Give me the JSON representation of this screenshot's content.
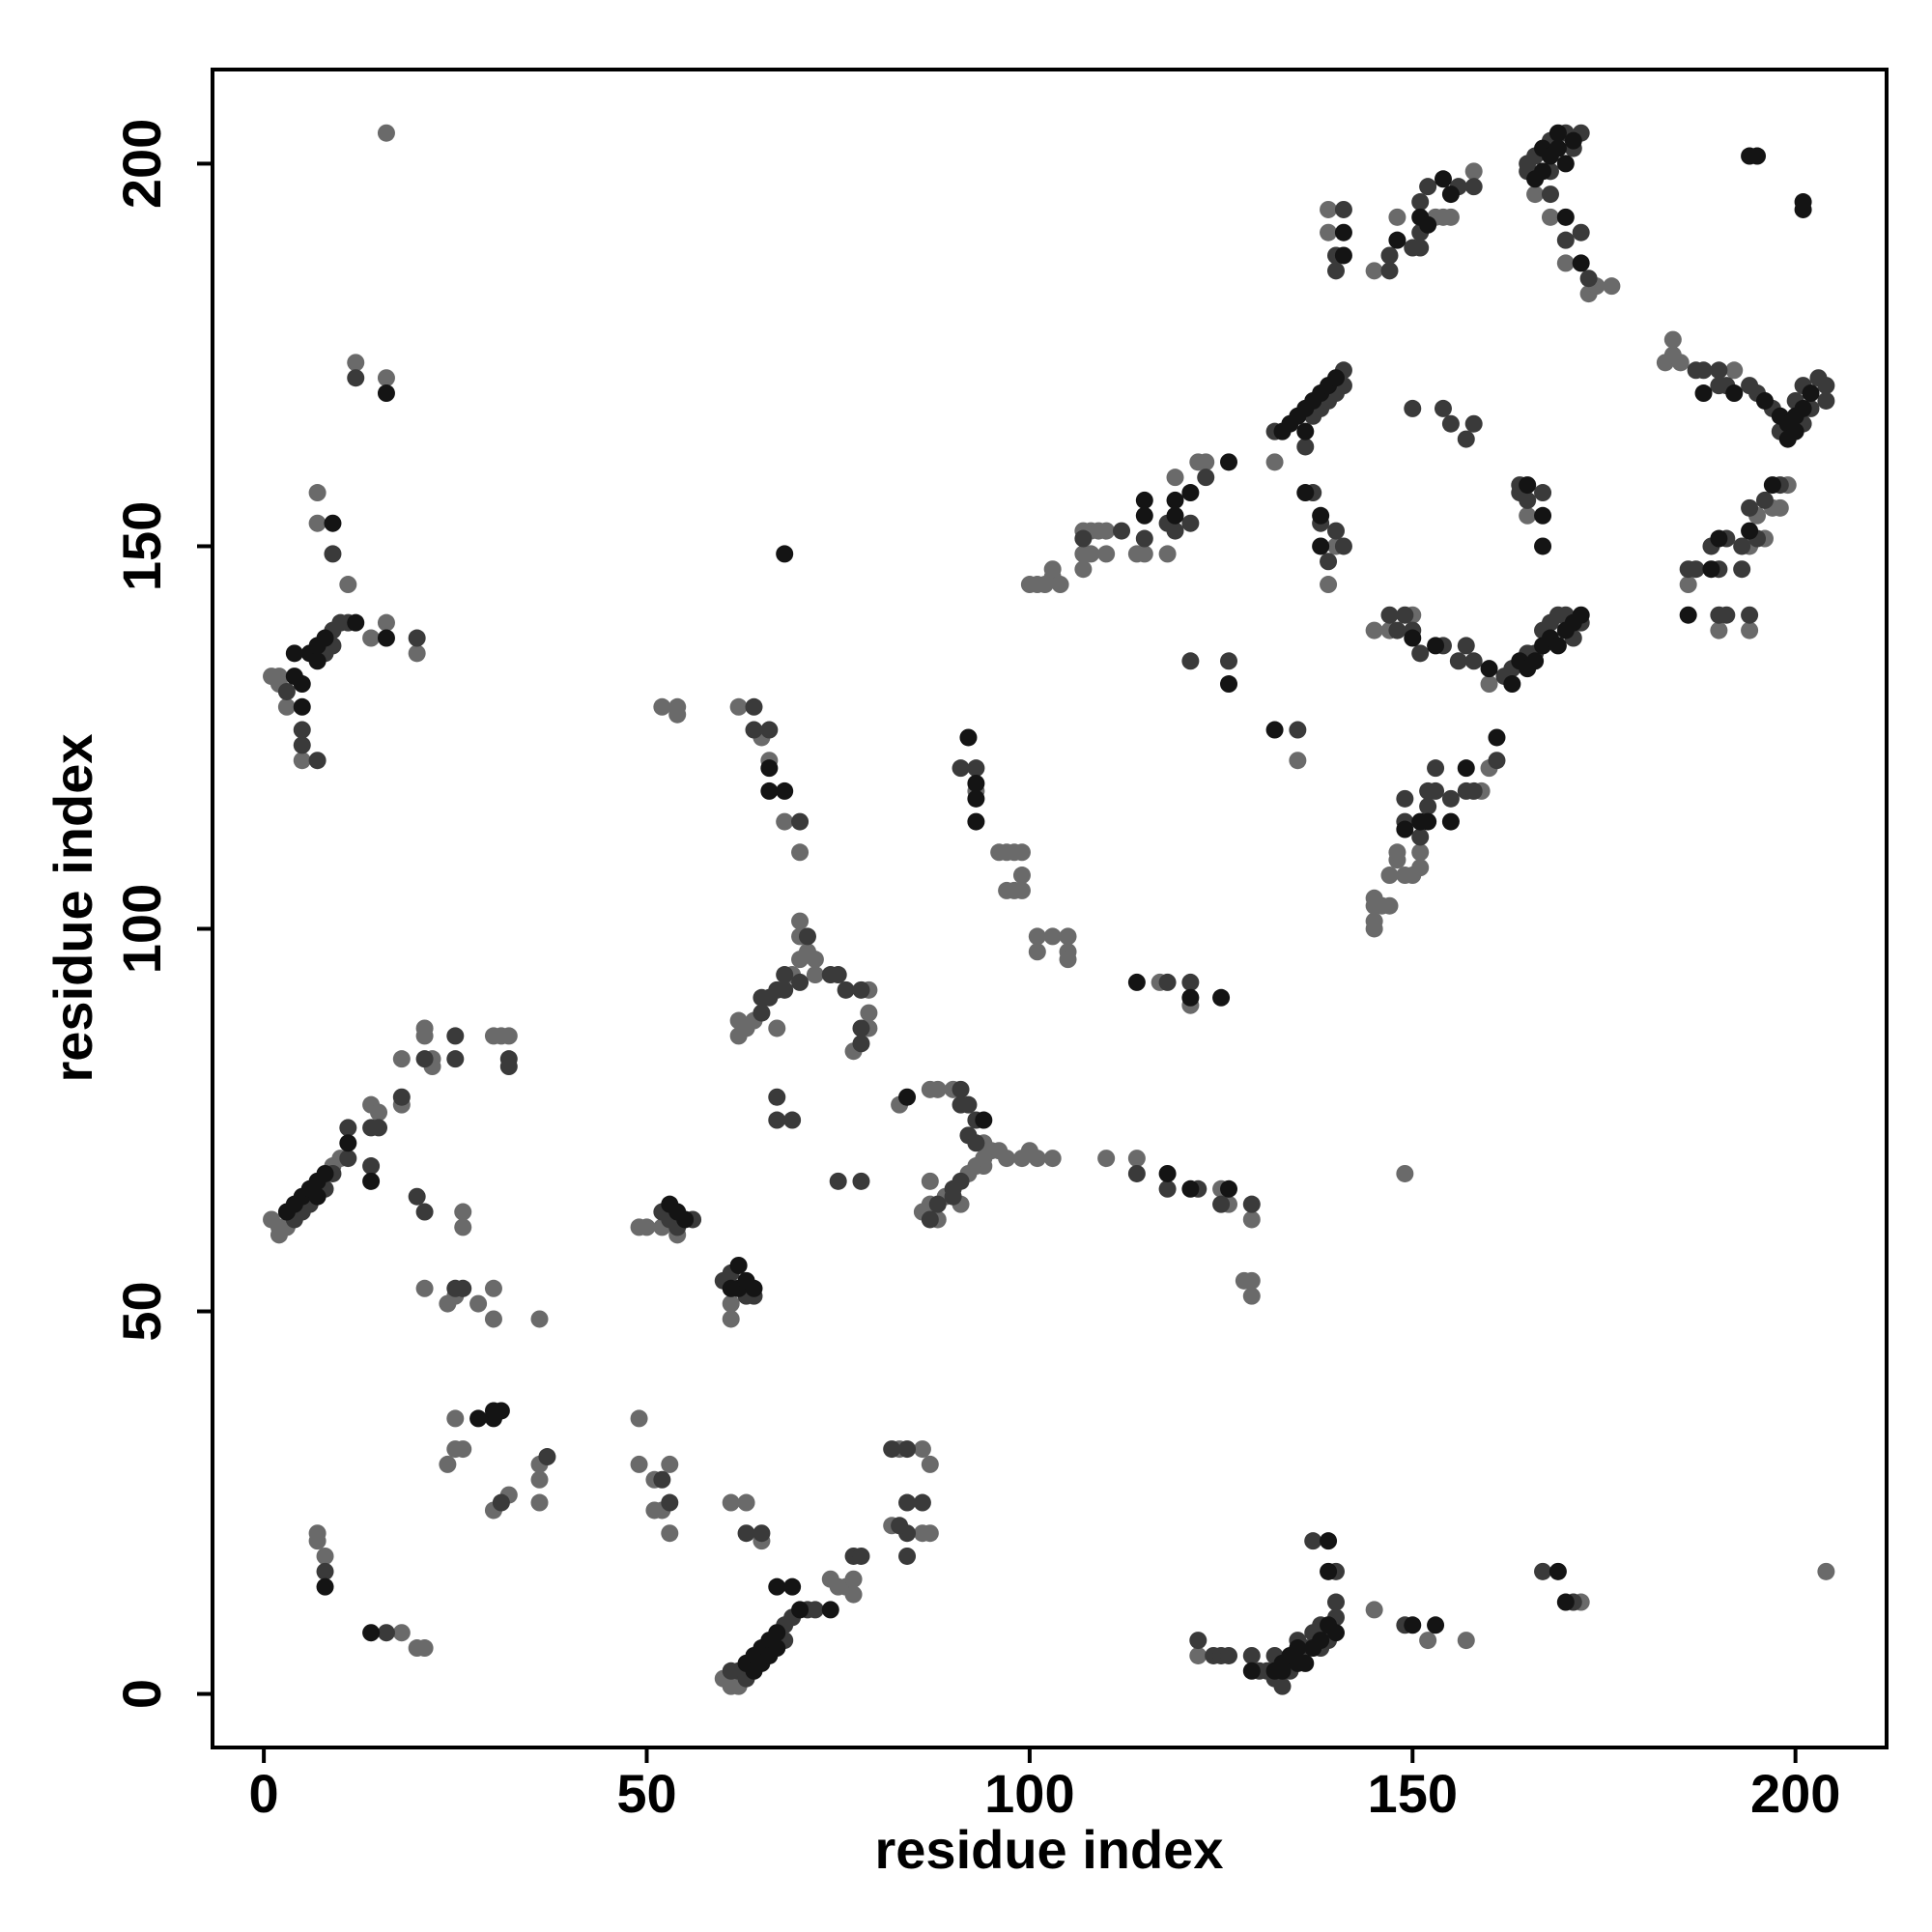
{
  "chart_data": {
    "type": "scatter",
    "x_label": "residue index",
    "y_label": "residue index",
    "xlim": [
      -6.7,
      211.9
    ],
    "ylim": [
      -7,
      212.3
    ],
    "xticks": [
      0,
      50,
      100,
      150,
      200
    ],
    "yticks": [
      0,
      50,
      100,
      150,
      200
    ],
    "grid": false,
    "series": [
      {
        "color": "#6a6a6a",
        "x": [
          7,
          7,
          8,
          18,
          20,
          21,
          24,
          25,
          25,
          26,
          30,
          32,
          36,
          36,
          36,
          49,
          49,
          51,
          51,
          52,
          53,
          53,
          61,
          63,
          65,
          60,
          61,
          62,
          74,
          75,
          76,
          77,
          77,
          83,
          86,
          87,
          82,
          87,
          86,
          1,
          2,
          2,
          3,
          9,
          10,
          14,
          15,
          18,
          18,
          22,
          21,
          21,
          22,
          30,
          31,
          32,
          26,
          26,
          21,
          25,
          24,
          28,
          30,
          30,
          36,
          1,
          2,
          2,
          3,
          5,
          7,
          7,
          11,
          14,
          16,
          20,
          12,
          16,
          16,
          49,
          50,
          52,
          54,
          52,
          54,
          54,
          61,
          61,
          62,
          65,
          66,
          68,
          70,
          93,
          96,
          97,
          98,
          99,
          97,
          98,
          99,
          99,
          101,
          101,
          103,
          105,
          105,
          105,
          62,
          62,
          63,
          64,
          67,
          69,
          70,
          70,
          70,
          71,
          72,
          72,
          79,
          79,
          77,
          79,
          83,
          87,
          88,
          90,
          94,
          95,
          94,
          93,
          92,
          91,
          87,
          86,
          88,
          87,
          89,
          96,
          97,
          99,
          100,
          101,
          103,
          94,
          110,
          114,
          125,
          126,
          129,
          128,
          129,
          129,
          117,
          121,
          149,
          100,
          101,
          102,
          103,
          103,
          104,
          107,
          107,
          107,
          108,
          109,
          108,
          110,
          110,
          114,
          115,
          118,
          119,
          122,
          123,
          132,
          135,
          139,
          140,
          139,
          139,
          145,
          148,
          153,
          154,
          155,
          158,
          145,
          147,
          150,
          160,
          145,
          145,
          145,
          145,
          146,
          147,
          147,
          148,
          148,
          149,
          150,
          151,
          151,
          159,
          160,
          165,
          166,
          168,
          170,
          173,
          174,
          176,
          183,
          184,
          184,
          185,
          192,
          186,
          190,
          194,
          194,
          195,
          197,
          198,
          199,
          196,
          122,
          145,
          152,
          157,
          172,
          204
        ],
        "y": [
          21,
          20,
          18,
          8,
          6,
          6,
          30,
          32,
          36,
          32,
          24,
          26,
          30,
          28,
          25,
          36,
          30,
          28,
          24,
          24,
          30,
          21,
          25,
          25,
          20,
          2,
          1,
          1,
          15,
          14,
          14,
          15,
          13,
          32,
          32,
          30,
          22,
          21,
          21,
          62,
          61,
          60,
          61,
          69,
          70,
          77,
          76,
          77,
          83,
          83,
          87,
          86,
          82,
          86,
          86,
          86,
          63,
          61,
          53,
          52,
          51,
          51,
          53,
          49,
          49,
          133,
          133,
          132,
          129,
          122,
          153,
          157,
          145,
          138,
          140,
          136,
          174,
          172,
          204,
          61,
          61,
          61,
          60,
          129,
          129,
          128,
          51,
          49,
          129,
          125,
          122,
          114,
          110,
          118,
          110,
          110,
          110,
          110,
          105,
          105,
          105,
          107,
          99,
          97,
          99,
          99,
          97,
          96,
          88,
          86,
          87,
          88,
          87,
          94,
          96,
          99,
          101,
          97,
          96,
          94,
          92,
          89,
          84,
          87,
          77,
          79,
          79,
          79,
          72,
          71,
          69,
          69,
          68,
          64,
          64,
          63,
          62,
          67,
          65,
          71,
          70,
          70,
          71,
          70,
          70,
          70,
          70,
          70,
          66,
          64,
          62,
          54,
          54,
          52,
          93,
          90,
          68,
          145,
          145,
          145,
          146,
          147,
          145,
          147,
          149,
          152,
          152,
          152,
          149,
          152,
          149,
          149,
          149,
          149,
          159,
          161,
          161,
          161,
          122,
          145,
          150,
          191,
          194,
          186,
          193,
          193,
          193,
          193,
          199,
          139,
          139,
          141,
          132,
          104,
          103,
          101,
          100,
          103,
          103,
          107,
          109,
          110,
          107,
          107,
          108,
          110,
          118,
          121,
          154,
          196,
          193,
          187,
          183,
          184,
          184,
          174,
          177,
          175,
          174,
          173,
          145,
          139,
          150,
          139,
          154,
          155,
          155,
          158,
          151,
          5,
          11,
          7,
          7,
          12,
          16
        ]
      },
      {
        "color": "#3a3a3a",
        "x": [
          8,
          16,
          31,
          37,
          53,
          52,
          63,
          65,
          62,
          61,
          63,
          68,
          68,
          69,
          71,
          72,
          77,
          78,
          82,
          84,
          84,
          84,
          84,
          86,
          83,
          4,
          5,
          6,
          8,
          9,
          11,
          11,
          14,
          14,
          15,
          18,
          21,
          25,
          25,
          32,
          32,
          21,
          20,
          25,
          26,
          3,
          5,
          5,
          8,
          9,
          7,
          9,
          9,
          11,
          10,
          12,
          20,
          52,
          53,
          54,
          56,
          61,
          63,
          64,
          60,
          64,
          64,
          66,
          70,
          91,
          93,
          65,
          65,
          66,
          67,
          68,
          68,
          70,
          71,
          74,
          75,
          76,
          78,
          78,
          78,
          67,
          67,
          69,
          75,
          78,
          91,
          91,
          92,
          93,
          92,
          93,
          91,
          90,
          90,
          88,
          87,
          114,
          118,
          122,
          125,
          129,
          118,
          121,
          107,
          112,
          115,
          119,
          118,
          121,
          123,
          121,
          126,
          135,
          132,
          137,
          138,
          139,
          140,
          141,
          141,
          136,
          137,
          138,
          139,
          140,
          141,
          140,
          140,
          141,
          147,
          147,
          150,
          151,
          151,
          151,
          152,
          156,
          158,
          150,
          154,
          155,
          158,
          157,
          147,
          148,
          149,
          150,
          151,
          154,
          156,
          157,
          158,
          162,
          163,
          165,
          166,
          167,
          168,
          169,
          170,
          171,
          172,
          149,
          149,
          151,
          152,
          152,
          153,
          153,
          155,
          157,
          158,
          161,
          164,
          164,
          165,
          167,
          165,
          165,
          166,
          168,
          168,
          170,
          171,
          172,
          168,
          170,
          172,
          173,
          187,
          188,
          190,
          190,
          191,
          194,
          195,
          197,
          198,
          200,
          201,
          203,
          204,
          204,
          201,
          202,
          186,
          187,
          189,
          190,
          190,
          191,
          191,
          193,
          193,
          194,
          195,
          196,
          198,
          194,
          122,
          124,
          125,
          126,
          129,
          130,
          131,
          132,
          132,
          133,
          134,
          135,
          136,
          137,
          138,
          138,
          139,
          140,
          140,
          140,
          137,
          149,
          167,
          171
        ],
        "y": [
          16,
          8,
          25,
          31,
          25,
          28,
          21,
          21,
          3,
          3,
          2,
          9,
          7,
          10,
          11,
          11,
          18,
          18,
          32,
          32,
          25,
          21,
          18,
          25,
          22,
          62,
          63,
          64,
          66,
          68,
          74,
          70,
          69,
          74,
          74,
          78,
          83,
          86,
          83,
          83,
          82,
          63,
          65,
          53,
          53,
          131,
          126,
          124,
          136,
          137,
          122,
          149,
          139,
          140,
          140,
          172,
          138,
          63,
          62,
          61,
          62,
          55,
          52,
          52,
          54,
          129,
          126,
          126,
          114,
          121,
          121,
          89,
          91,
          91,
          92,
          92,
          94,
          93,
          99,
          94,
          94,
          92,
          92,
          87,
          85,
          78,
          75,
          75,
          67,
          67,
          79,
          77,
          77,
          75,
          73,
          72,
          67,
          66,
          65,
          64,
          62,
          68,
          66,
          66,
          64,
          64,
          93,
          93,
          151,
          152,
          151,
          152,
          153,
          153,
          159,
          135,
          135,
          126,
          165,
          167,
          168,
          169,
          170,
          171,
          173,
          163,
          157,
          153,
          148,
          152,
          150,
          188,
          186,
          194,
          186,
          188,
          189,
          189,
          191,
          195,
          197,
          197,
          197,
          168,
          168,
          166,
          166,
          164,
          141,
          139,
          141,
          139,
          136,
          137,
          135,
          137,
          135,
          133,
          134,
          136,
          136,
          139,
          140,
          141,
          141,
          138,
          140,
          114,
          117,
          112,
          116,
          118,
          118,
          121,
          117,
          118,
          118,
          122,
          157,
          158,
          156,
          157,
          199,
          200,
          201,
          203,
          199,
          204,
          202,
          204,
          196,
          190,
          191,
          185,
          173,
          173,
          173,
          171,
          171,
          171,
          170,
          168,
          165,
          169,
          171,
          172,
          171,
          169,
          166,
          168,
          147,
          147,
          150,
          147,
          141,
          141,
          151,
          147,
          150,
          155,
          151,
          156,
          158,
          141,
          7,
          5,
          5,
          5,
          5,
          3,
          3,
          5,
          2,
          1,
          3,
          7,
          6,
          8,
          9,
          6,
          7,
          10,
          12,
          16,
          20,
          9,
          16,
          12
        ]
      },
      {
        "color": "#141414",
        "x": [
          8,
          14,
          28,
          30,
          30,
          31,
          63,
          64,
          64,
          65,
          65,
          66,
          66,
          67,
          67,
          67,
          69,
          70,
          74,
          3,
          4,
          5,
          6,
          7,
          7,
          8,
          11,
          14,
          4,
          4,
          5,
          5,
          6,
          7,
          7,
          8,
          9,
          12,
          16,
          16,
          53,
          54,
          55,
          62,
          62,
          63,
          64,
          61,
          66,
          66,
          68,
          68,
          92,
          93,
          93,
          93,
          84,
          94,
          118,
          121,
          126,
          121,
          125,
          114,
          115,
          115,
          119,
          119,
          121,
          126,
          126,
          132,
          133,
          134,
          135,
          136,
          137,
          138,
          139,
          140,
          136,
          136,
          138,
          138,
          141,
          141,
          148,
          151,
          152,
          154,
          155,
          150,
          153,
          160,
          163,
          164,
          165,
          166,
          167,
          168,
          169,
          170,
          171,
          172,
          149,
          151,
          152,
          155,
          157,
          161,
          165,
          167,
          167,
          166,
          167,
          167,
          168,
          169,
          169,
          170,
          171,
          170,
          172,
          188,
          192,
          196,
          198,
          199,
          200,
          201,
          202,
          199,
          200,
          194,
          195,
          201,
          201,
          186,
          189,
          190,
          194,
          197,
          129,
          132,
          133,
          133,
          134,
          135,
          135,
          136,
          137,
          138,
          139,
          140,
          139,
          139,
          150,
          153,
          169,
          170
        ],
        "y": [
          14,
          8,
          36,
          36,
          37,
          37,
          4,
          5,
          3,
          6,
          4,
          7,
          5,
          8,
          6,
          14,
          14,
          11,
          11,
          63,
          64,
          65,
          66,
          67,
          65,
          68,
          72,
          67,
          136,
          133,
          132,
          129,
          136,
          137,
          135,
          138,
          153,
          140,
          138,
          170,
          64,
          63,
          62,
          56,
          53,
          54,
          53,
          53,
          121,
          118,
          118,
          149,
          125,
          119,
          117,
          114,
          78,
          75,
          68,
          66,
          66,
          91,
          91,
          93,
          154,
          156,
          156,
          154,
          157,
          161,
          132,
          126,
          165,
          166,
          167,
          168,
          169,
          170,
          171,
          172,
          165,
          157,
          154,
          150,
          188,
          191,
          190,
          193,
          192,
          198,
          196,
          138,
          137,
          134,
          132,
          135,
          134,
          135,
          137,
          138,
          137,
          139,
          140,
          141,
          113,
          114,
          114,
          114,
          121,
          125,
          158,
          154,
          150,
          198,
          199,
          202,
          201,
          204,
          202,
          200,
          203,
          193,
          187,
          170,
          170,
          169,
          167,
          166,
          167,
          168,
          170,
          164,
          165,
          201,
          201,
          195,
          194,
          141,
          147,
          151,
          152,
          158,
          3,
          3,
          3,
          4,
          5,
          4,
          6,
          4,
          6,
          7,
          9,
          8,
          16,
          20,
          9,
          9,
          16,
          12
        ]
      }
    ]
  }
}
